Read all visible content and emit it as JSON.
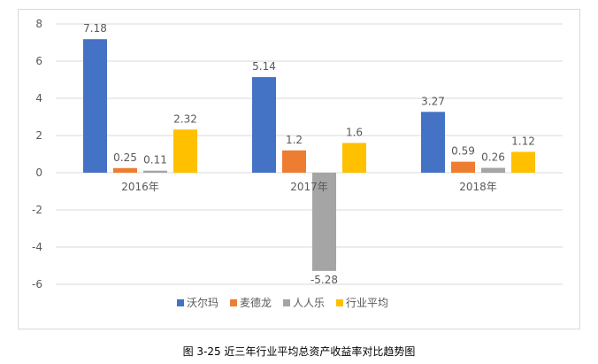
{
  "chart_data": {
    "type": "bar",
    "categories": [
      "2016年",
      "2017年",
      "2018年"
    ],
    "series": [
      {
        "name": "沃尔玛",
        "color": "#4472C4",
        "values": [
          7.18,
          5.14,
          3.27
        ]
      },
      {
        "name": "麦德龙",
        "color": "#ED7D31",
        "values": [
          0.25,
          1.2,
          0.59
        ]
      },
      {
        "name": "人人乐",
        "color": "#A5A5A5",
        "values": [
          0.11,
          -5.28,
          0.26
        ]
      },
      {
        "name": "行业平均",
        "color": "#FFC000",
        "values": [
          2.32,
          1.6,
          1.12
        ]
      }
    ],
    "data_labels": [
      [
        "7.18",
        "5.14",
        "3.27"
      ],
      [
        "0.25",
        "1.2",
        "0.59"
      ],
      [
        "0.11",
        "-5.28",
        "0.26"
      ],
      [
        "2.32",
        "1.6",
        "1.12"
      ]
    ],
    "yticks": [
      "-6",
      "-4",
      "-2",
      "0",
      "2",
      "4",
      "6",
      "8"
    ],
    "ylim": [
      -6,
      8
    ],
    "grid": true,
    "legend": "bottom"
  },
  "caption": "图 3-25  近三年行业平均总资产收益率对比趋势图"
}
